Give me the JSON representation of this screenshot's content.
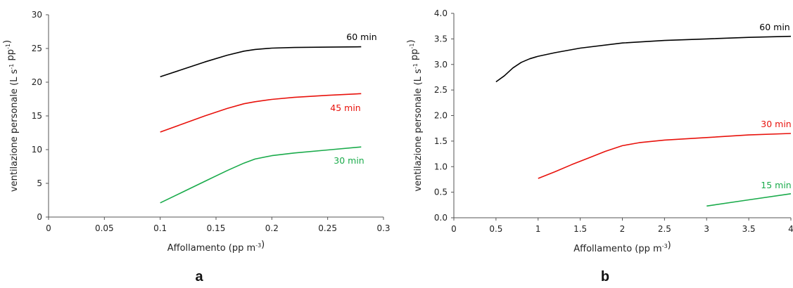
{
  "chart_data": [
    {
      "panel_label": "a",
      "type": "line",
      "xlabel": "Affollamento (pp m⁻³)",
      "ylabel": "ventilazione personale (L s⁻¹ pp⁻¹)",
      "xlim": [
        0,
        0.3
      ],
      "ylim": [
        0,
        30
      ],
      "x_ticks": [
        0,
        0.05,
        0.1,
        0.15,
        0.2,
        0.25,
        0.3
      ],
      "x_tick_labels": [
        "0",
        "0.05",
        "0.1",
        "0.15",
        "0.2",
        "0.25",
        "0.3"
      ],
      "y_ticks": [
        0,
        5,
        10,
        15,
        20,
        25,
        30
      ],
      "y_tick_labels": [
        "0",
        "5",
        "10",
        "15",
        "20",
        "25",
        "30"
      ],
      "series": [
        {
          "name": "60 min",
          "color": "#000000",
          "x": [
            0.1,
            0.12,
            0.14,
            0.16,
            0.175,
            0.185,
            0.2,
            0.22,
            0.25,
            0.28
          ],
          "y": [
            20.8,
            21.9,
            23.0,
            24.0,
            24.6,
            24.85,
            25.05,
            25.15,
            25.2,
            25.25
          ]
        },
        {
          "name": "45 min",
          "color": "#e8120c",
          "x": [
            0.1,
            0.12,
            0.14,
            0.16,
            0.175,
            0.185,
            0.2,
            0.22,
            0.25,
            0.28
          ],
          "y": [
            12.6,
            13.8,
            15.0,
            16.1,
            16.8,
            17.1,
            17.45,
            17.75,
            18.05,
            18.3
          ]
        },
        {
          "name": "30 min",
          "color": "#1aab4b",
          "x": [
            0.1,
            0.12,
            0.14,
            0.16,
            0.175,
            0.185,
            0.2,
            0.22,
            0.25,
            0.28
          ],
          "y": [
            2.1,
            3.7,
            5.3,
            6.9,
            8.0,
            8.6,
            9.1,
            9.5,
            9.95,
            10.4
          ]
        }
      ]
    },
    {
      "panel_label": "b",
      "type": "line",
      "xlabel": "Affollamento (pp m⁻³)",
      "ylabel": "ventilazione personale (L s⁻¹ pp⁻¹)",
      "xlim": [
        0,
        4
      ],
      "ylim": [
        0,
        4
      ],
      "x_ticks": [
        0,
        0.5,
        1,
        1.5,
        2,
        2.5,
        3,
        3.5,
        4
      ],
      "x_tick_labels": [
        "0",
        "0.5",
        "1",
        "1.5",
        "2",
        "2.5",
        "3",
        "3.5",
        "4"
      ],
      "y_ticks": [
        0,
        0.5,
        1,
        1.5,
        2,
        2.5,
        3,
        3.5,
        4
      ],
      "y_tick_labels": [
        "0.0",
        "0.5",
        "1.0",
        "1.5",
        "2.0",
        "2.5",
        "3.0",
        "3.5",
        "4.0"
      ],
      "series": [
        {
          "name": "60 min",
          "color": "#000000",
          "x": [
            0.5,
            0.6,
            0.7,
            0.8,
            0.9,
            1.0,
            1.2,
            1.5,
            2.0,
            2.5,
            3.0,
            3.5,
            4.0
          ],
          "y": [
            2.66,
            2.78,
            2.93,
            3.04,
            3.11,
            3.16,
            3.23,
            3.32,
            3.42,
            3.47,
            3.5,
            3.53,
            3.55
          ]
        },
        {
          "name": "30 min",
          "color": "#e8120c",
          "x": [
            1.0,
            1.2,
            1.4,
            1.6,
            1.8,
            2.0,
            2.2,
            2.5,
            3.0,
            3.5,
            4.0
          ],
          "y": [
            0.77,
            0.9,
            1.04,
            1.17,
            1.3,
            1.41,
            1.47,
            1.52,
            1.57,
            1.62,
            1.65
          ]
        },
        {
          "name": "15 min",
          "color": "#1aab4b",
          "x": [
            3.0,
            3.5,
            4.0
          ],
          "y": [
            0.23,
            0.35,
            0.47
          ]
        }
      ]
    }
  ]
}
